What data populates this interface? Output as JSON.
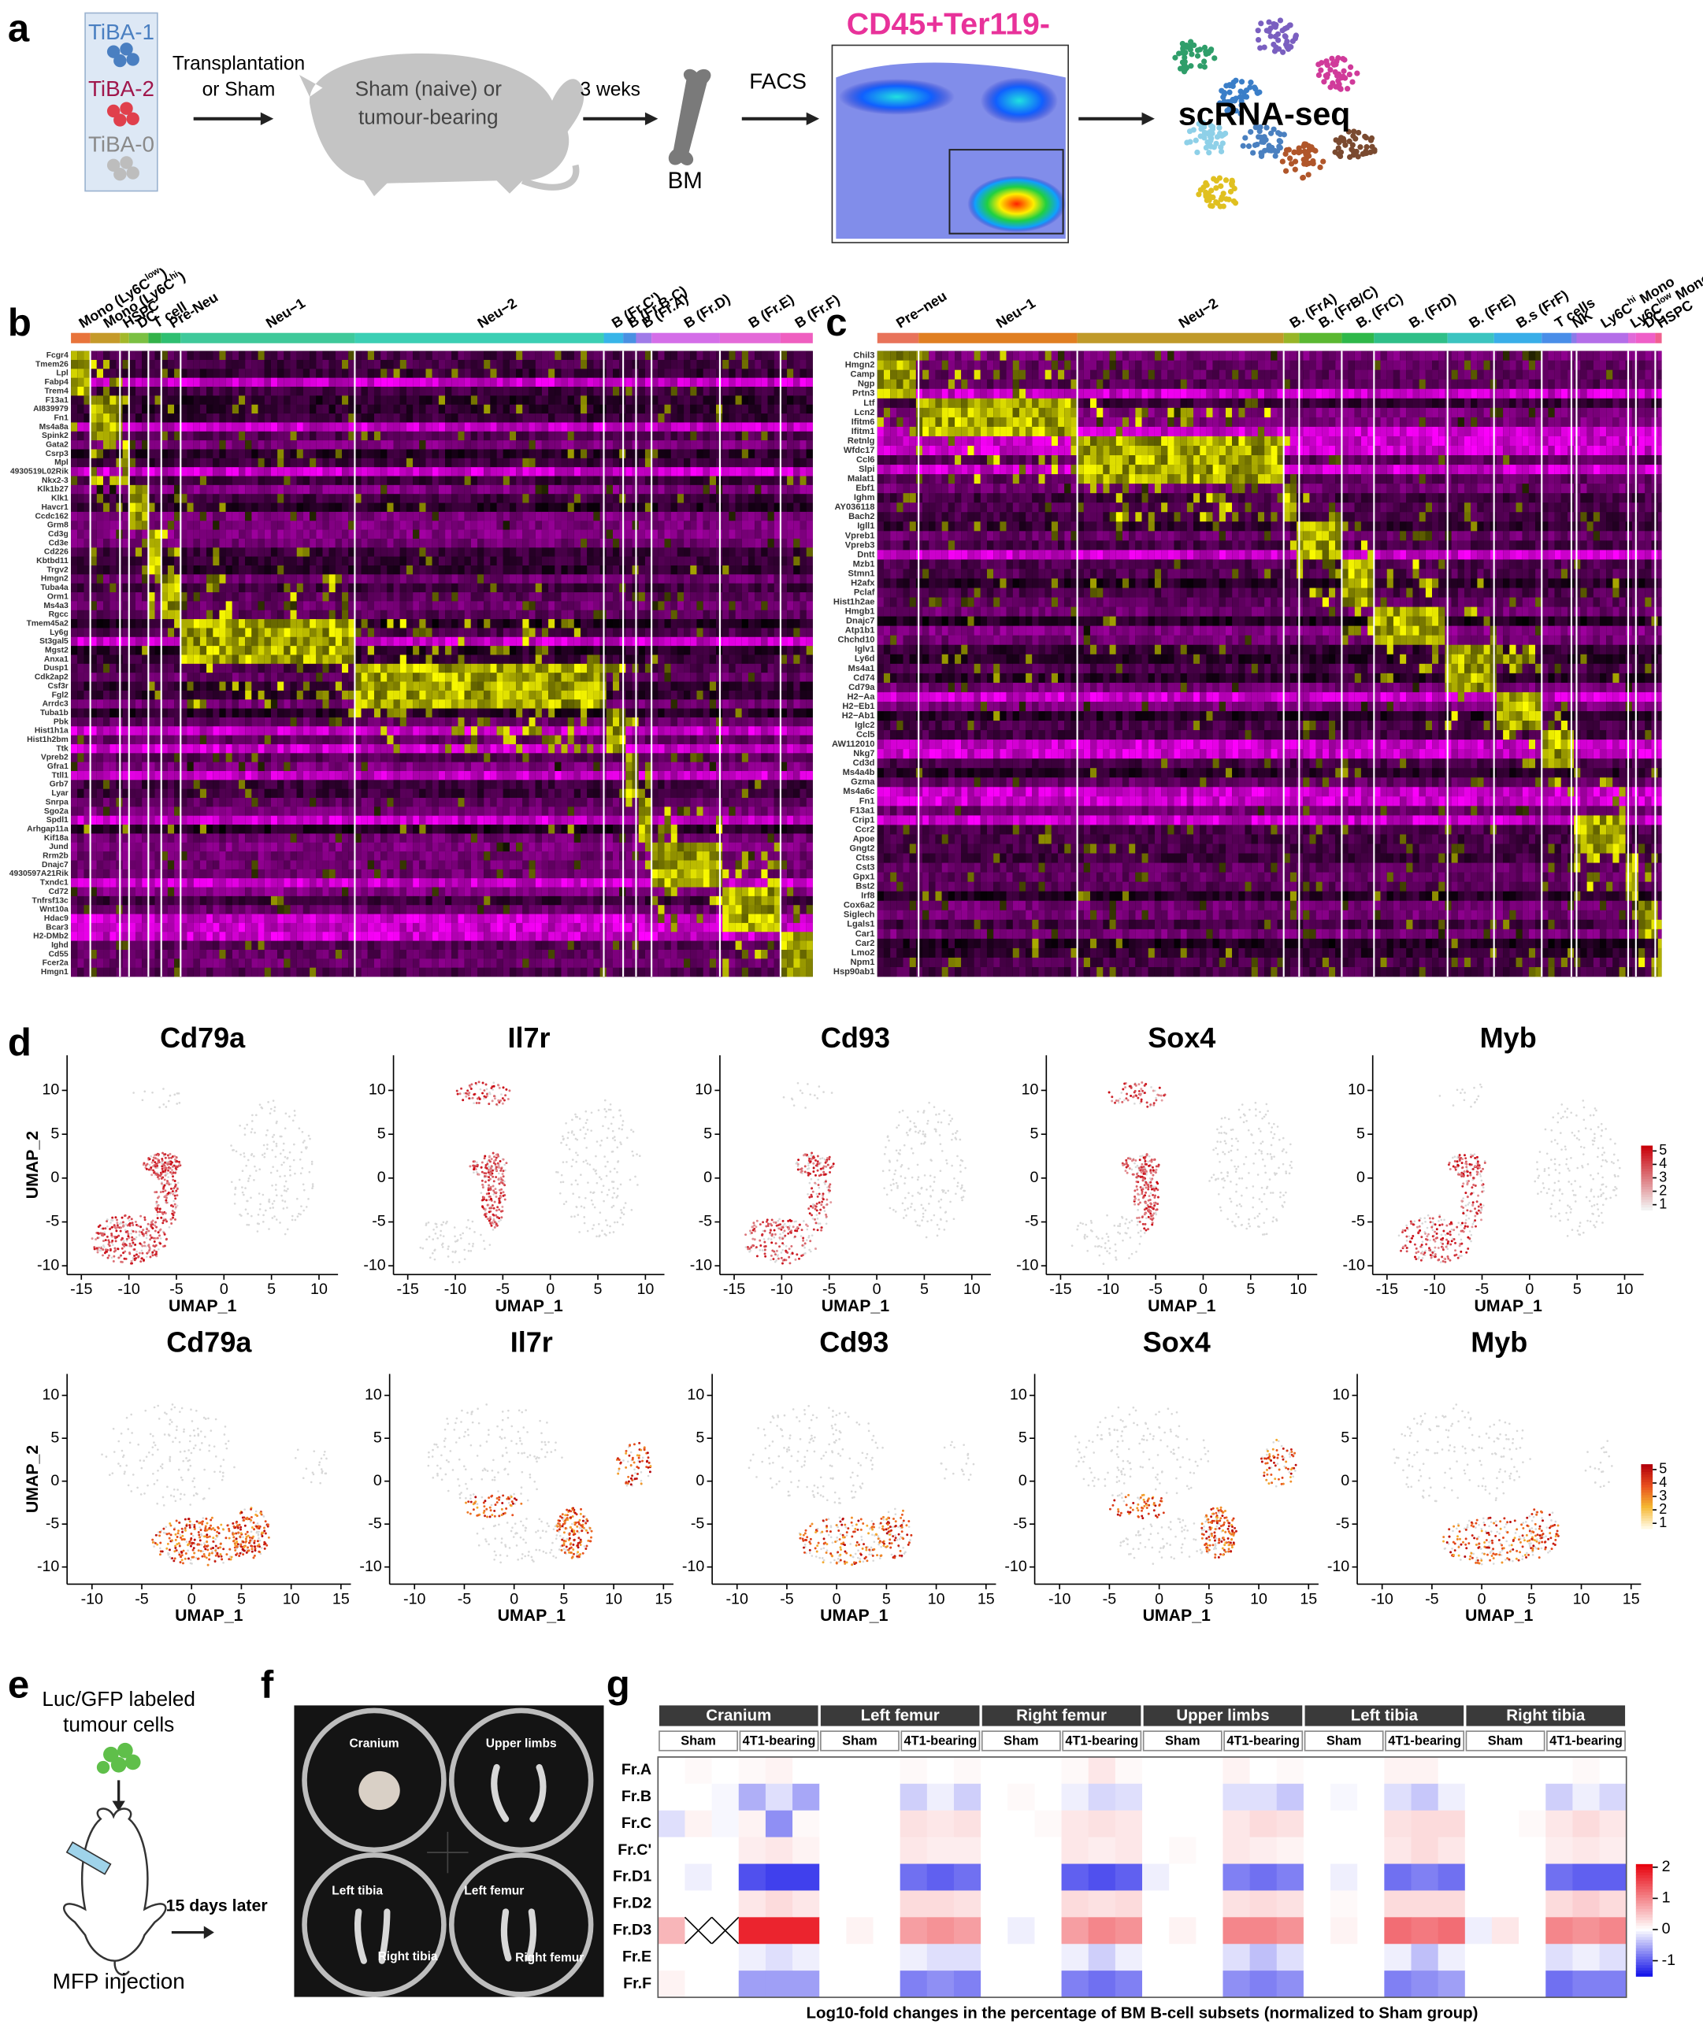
{
  "panel_a": {
    "label": "a",
    "groups": [
      "TiBA-1",
      "TiBA-2",
      "TiBA-0"
    ],
    "group_colors": [
      "#4a7fc1",
      "#a0174c",
      "#8a8a8a"
    ],
    "transplant": [
      "Transplantation",
      "or Sham"
    ],
    "mouse": [
      "Sham (naive) or",
      "tumour-bearing"
    ],
    "wait": "3 weks",
    "bm": "BM",
    "facs": "FACS",
    "gate": "CD45+Ter119-",
    "seq": "scRNA-seq"
  },
  "panel_b": {
    "label": "b",
    "clusters": [
      {
        "name": "Mono (Ly6C",
        "sup": "low",
        "suffix": ")",
        "color": "#e8743b"
      },
      {
        "name": "Mono (Ly6C",
        "sup": "hi",
        "suffix": ")",
        "color": "#c59a2a"
      },
      {
        "name": "HSPC",
        "color": "#a3b82a"
      },
      {
        "name": "DC",
        "color": "#7bc043"
      },
      {
        "name": "T cell",
        "color": "#34b24a"
      },
      {
        "name": "Pre-Neu",
        "color": "#2fbf71"
      },
      {
        "name": "Neu−1",
        "color": "#3fc99a"
      },
      {
        "name": "Neu−2",
        "color": "#3ccfb4"
      },
      {
        "name": "B (Fr.C')",
        "color": "#38b5e8"
      },
      {
        "name": "B (Fr.B-C)",
        "color": "#4a90e2"
      },
      {
        "name": "B (Fr.A)",
        "color": "#a07be8"
      },
      {
        "name": "B (Fr.D)",
        "color": "#d46ee8"
      },
      {
        "name": "B (Fr.E)",
        "color": "#e46ad8"
      },
      {
        "name": "B (Fr.F)",
        "color": "#ef5fc0"
      }
    ],
    "genes": [
      "Fcgr4",
      "Tmem26",
      "Lpl",
      "Fabp4",
      "Trem4",
      "F13a1",
      "AI839979",
      "Fn1",
      "Ms4a8a",
      "Spink2",
      "Gata2",
      "Csrp3",
      "Mpl",
      "4930519L02Rik",
      "Nkx2-3",
      "Klk1b27",
      "Klk1",
      "Havcr1",
      "Ccdc162",
      "Grm8",
      "Cd3g",
      "Cd3e",
      "Cd226",
      "Kbtbd11",
      "Trgv2",
      "Hmgn2",
      "Tuba4a",
      "Orm1",
      "Ms4a3",
      "Rgcc",
      "Tmem45a2",
      "Ly6g",
      "St3gal5",
      "Mgst2",
      "Anxa1",
      "Dusp1",
      "Cdk2ap2",
      "Csf3r",
      "Fgl2",
      "Arrdc3",
      "Tuba1b",
      "Pbk",
      "Hist1h1a",
      "Hist1h2bm",
      "Ttk",
      "Vpreb2",
      "Gfra1",
      "Ttll1",
      "Grb7",
      "Lyar",
      "Snrpa",
      "Sgo2a",
      "Spdl1",
      "Arhgap11a",
      "Kif18a",
      "Jund",
      "Rrm2b",
      "Dnajc7",
      "4930597A21Rik",
      "Txndc1",
      "Cd72",
      "Tnfrsf13c",
      "Wnt10a",
      "Hdac9",
      "Bcar3",
      "H2-DMb2",
      "Ighd",
      "Cd55",
      "Fcer2a",
      "Hmgn1"
    ]
  },
  "panel_c": {
    "label": "c",
    "clusters": [
      {
        "name": "Pre−neu",
        "color": "#e8735a"
      },
      {
        "name": "Neu−1",
        "color": "#e07f22"
      },
      {
        "name": "Neu−2",
        "color": "#c09a2a"
      },
      {
        "name": "B. (FrA)",
        "color": "#98b528"
      },
      {
        "name": "B. (FrB/C)",
        "color": "#5bb832"
      },
      {
        "name": "B. (FrC)",
        "color": "#2fb84a"
      },
      {
        "name": "B. (FrD)",
        "color": "#2fbf88"
      },
      {
        "name": "B. (FrE)",
        "color": "#3cc4c0"
      },
      {
        "name": "B.s (FrF)",
        "color": "#3aaee8"
      },
      {
        "name": "T cells",
        "color": "#4a8ee8"
      },
      {
        "name": "NK",
        "color": "#8a7be8"
      },
      {
        "name": "Ly6C",
        "sup": "hi",
        "suffix": " Mono",
        "color": "#b46ee8"
      },
      {
        "name": "Ly6C",
        "sup": "low",
        "suffix": " Mono",
        "color": "#e06ad8"
      },
      {
        "name": "DC",
        "color": "#ef5fc8"
      },
      {
        "name": "HSPC",
        "color": "#f06090"
      }
    ],
    "genes": [
      "Chil3",
      "Hmgn2",
      "Camp",
      "Ngp",
      "Prtn3",
      "Ltf",
      "Lcn2",
      "Ifitm6",
      "Ifitm1",
      "Retnlg",
      "Wfdc17",
      "Ccl6",
      "Slpi",
      "Malat1",
      "Ebf1",
      "Ighm",
      "AY036118",
      "Bach2",
      "Igll1",
      "Vpreb1",
      "Vpreb3",
      "Dntt",
      "Mzb1",
      "Stmn1",
      "H2afx",
      "Pclaf",
      "Hist1h2ae",
      "Hmgb1",
      "Dnajc7",
      "Atp1b1",
      "Chchd10",
      "Iglv1",
      "Ly6d",
      "Ms4a1",
      "Cd74",
      "Cd79a",
      "H2−Aa",
      "H2−Eb1",
      "H2−Ab1",
      "Iglc2",
      "Ccl5",
      "AW112010",
      "Nkg7",
      "Cd3d",
      "Ms4a4b",
      "Gzma",
      "Ms4a6c",
      "Fn1",
      "F13a1",
      "Crip1",
      "Ccr2",
      "Apoe",
      "Gngt2",
      "Ctss",
      "Cst3",
      "Gpx1",
      "Bst2",
      "Irf8",
      "Cox6a2",
      "Siglech",
      "Lgals1",
      "Car1",
      "Car2",
      "Lmo2",
      "Npm1",
      "Hsp90ab1"
    ]
  },
  "panel_d": {
    "label": "d",
    "xlabel": "UMAP_1",
    "ylabel": "UMAP_2",
    "rows": [
      {
        "genes": [
          "Cd79a",
          "Il7r",
          "Cd93",
          "Sox4",
          "Myb"
        ],
        "xlim": [
          -16.5,
          12
        ],
        "ylim": [
          -11,
          14
        ],
        "xticks": [
          -15,
          -10,
          -5,
          0,
          5,
          10
        ],
        "yticks": [
          -10,
          -5,
          0,
          5,
          10
        ],
        "colorbar": {
          "lim": [
            0.6,
            5.4
          ],
          "ticks": [
            1,
            2,
            3,
            4,
            5
          ],
          "colors": [
            "#f2f2f2",
            "#c8000a"
          ]
        }
      },
      {
        "genes": [
          "Cd79a",
          "Il7r",
          "Cd93",
          "Sox4",
          "Myb"
        ],
        "xlim": [
          -12.5,
          16
        ],
        "ylim": [
          -12,
          12.5
        ],
        "xticks": [
          -10,
          -5,
          0,
          5,
          10,
          15
        ],
        "yticks": [
          -10,
          -5,
          0,
          5,
          10
        ],
        "colorbar": {
          "lim": [
            0.6,
            5.4
          ],
          "ticks": [
            1,
            2,
            3,
            4,
            5
          ],
          "colors": [
            "#fff8e0",
            "#f5b731",
            "#e8501e",
            "#b3000a"
          ]
        }
      }
    ]
  },
  "panel_e": {
    "label": "e",
    "cells": [
      "Luc/GFP labeled",
      "tumour cells"
    ],
    "injection": "MFP injection",
    "later": "15 days later"
  },
  "panel_f": {
    "label": "f",
    "sites": [
      "Cranium",
      "Upper limbs",
      "Left tibia",
      "Left femur",
      "Right tibia",
      "Right femur"
    ]
  },
  "panel_g": {
    "label": "g",
    "tissues": [
      "Cranium",
      "Left femur",
      "Right femur",
      "Upper limbs",
      "Left tibia",
      "Right tibia"
    ],
    "groups": [
      "Sham",
      "4T1-bearing"
    ],
    "subsets": [
      "Fr.A",
      "Fr.B",
      "Fr.C",
      "Fr.C'",
      "Fr.D1",
      "Fr.D2",
      "Fr.D3",
      "Fr.E",
      "Fr.F"
    ],
    "values": [
      [
        0,
        0.05,
        0,
        0.05,
        0.1,
        0,
        0,
        0,
        0,
        0.05,
        0,
        0.05,
        0,
        0,
        0,
        0.05,
        0.2,
        0.05,
        0,
        0,
        0,
        0.1,
        0,
        0.05,
        0,
        0,
        0,
        0.1,
        0.1,
        0,
        0,
        0,
        0,
        0,
        0.05,
        0
      ],
      [
        0,
        0,
        -0.05,
        -0.5,
        -0.2,
        -0.55,
        0,
        0,
        0,
        -0.3,
        -0.1,
        -0.3,
        0,
        0.05,
        0,
        -0.1,
        -0.25,
        -0.2,
        0,
        0,
        0,
        -0.2,
        -0.2,
        -0.35,
        0,
        -0.05,
        0,
        -0.2,
        -0.35,
        -0.1,
        0,
        0,
        0,
        -0.3,
        -0.1,
        -0.25
      ],
      [
        -0.2,
        0.1,
        -0.05,
        0.1,
        -0.7,
        0.05,
        0,
        0,
        0,
        0.25,
        0.2,
        0.25,
        0,
        0,
        0.05,
        0.2,
        0.25,
        0.2,
        0,
        0,
        0,
        0.2,
        0.3,
        0.25,
        0,
        0,
        0,
        0.25,
        0.3,
        0.3,
        0,
        0,
        0.05,
        0.2,
        0.3,
        0.2
      ],
      [
        0,
        0,
        0,
        0.15,
        0.2,
        0.1,
        0,
        0,
        0,
        0.2,
        0.15,
        0.15,
        0,
        0,
        0,
        0.2,
        0.15,
        0.2,
        0,
        0.05,
        0,
        0.2,
        0.15,
        0.1,
        0,
        0,
        0,
        0.2,
        0.3,
        0.2,
        0,
        0,
        0,
        0.15,
        0.2,
        0.15
      ],
      [
        0,
        -0.1,
        0,
        -1.1,
        -1.2,
        -1.2,
        0,
        0,
        0,
        -0.9,
        -1,
        -0.9,
        0,
        0,
        0,
        -1,
        -1.1,
        -1,
        -0.1,
        0,
        0,
        -0.8,
        -0.9,
        -0.8,
        0,
        -0.1,
        0,
        -0.9,
        -0.8,
        -0.9,
        0,
        0,
        0,
        -0.9,
        -1,
        -1
      ],
      [
        0,
        0,
        0,
        0.2,
        0.3,
        0.2,
        0,
        0,
        0,
        0.3,
        0.3,
        0.25,
        0,
        0,
        0,
        0.3,
        0.25,
        0.3,
        0,
        0,
        0,
        0.25,
        0.3,
        0.25,
        0,
        0.05,
        0,
        0.3,
        0.3,
        0.3,
        0,
        0,
        0,
        0.3,
        0.4,
        0.3
      ],
      [
        0.6,
        null,
        null,
        1.8,
        1.8,
        1.8,
        0,
        0.1,
        0,
        0.8,
        0.9,
        0.8,
        0,
        -0.1,
        0,
        0.8,
        1,
        0.9,
        0,
        0.1,
        0,
        1,
        1,
        0.9,
        0,
        0.1,
        0,
        1.2,
        1.1,
        1.2,
        -0.1,
        0.2,
        0,
        1,
        0.9,
        1
      ],
      [
        0,
        0,
        0,
        -0.1,
        -0.2,
        -0.1,
        0,
        0,
        0,
        -0.1,
        -0.2,
        -0.2,
        0,
        0,
        0,
        -0.1,
        -0.3,
        -0.1,
        0,
        0,
        0,
        -0.2,
        -0.4,
        -0.2,
        0,
        0,
        0,
        -0.1,
        -0.4,
        -0.1,
        0,
        0,
        0,
        -0.2,
        -0.1,
        -0.2
      ],
      [
        0.1,
        0,
        0,
        -0.6,
        -0.6,
        -0.6,
        0,
        0,
        0,
        -0.8,
        -0.7,
        -0.8,
        0,
        0,
        0,
        -0.8,
        -0.9,
        -0.8,
        0,
        0,
        0,
        -0.7,
        -0.8,
        -0.7,
        0,
        0,
        0,
        -0.8,
        -0.7,
        -0.6,
        0,
        0,
        0,
        -0.9,
        -0.8,
        -0.8
      ]
    ],
    "colorbar": {
      "lim": [
        -1.5,
        2.1
      ],
      "ticks": [
        -1,
        0,
        1,
        2
      ]
    },
    "caption": "Log10-fold changes in the percentage of BM B-cell subsets (normalized to Sham group)"
  }
}
